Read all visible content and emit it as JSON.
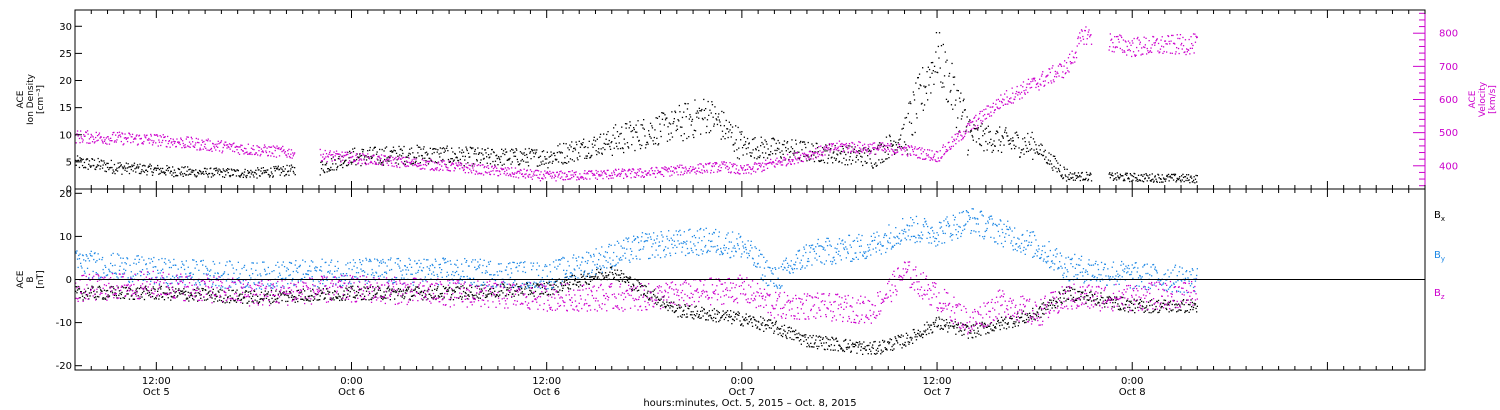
{
  "chart_data": [
    {
      "type": "scatter",
      "panel": "top",
      "time_range": [
        "2015-10-05T07:00",
        "2015-10-08T18:00"
      ],
      "left_axis": {
        "label_lines": [
          "ACE",
          "Ion Density",
          "[cm⁻³]"
        ],
        "ylim": [
          0,
          33
        ],
        "ticks": [
          0,
          5,
          10,
          15,
          20,
          25,
          30
        ]
      },
      "right_axis": {
        "label_lines": [
          "ACE",
          "Velocity",
          "[km/s]"
        ],
        "ylim": [
          330,
          870
        ],
        "ticks": [
          400,
          500,
          600,
          700,
          800
        ],
        "color": "#cc00cc"
      },
      "series": [
        {
          "key": "density",
          "color": "#000000",
          "axis": "left",
          "points": [
            [
              "2015-10-05T07:00",
              5
            ],
            [
              "2015-10-05T10:00",
              4
            ],
            [
              "2015-10-05T14:00",
              3.2
            ],
            [
              "2015-10-05T18:00",
              3
            ],
            [
              "2015-10-05T22:00",
              4
            ],
            [
              "2015-10-06T00:00",
              6
            ],
            [
              "2015-10-06T04:00",
              6.5
            ],
            [
              "2015-10-06T08:00",
              6
            ],
            [
              "2015-10-06T12:00",
              6
            ],
            [
              "2015-10-06T16:00",
              9
            ],
            [
              "2015-10-06T20:00",
              12
            ],
            [
              "2015-10-06T22:00",
              14
            ],
            [
              "2015-10-07T00:00",
              8
            ],
            [
              "2015-10-07T04:00",
              7
            ],
            [
              "2015-10-07T08:00",
              6
            ],
            [
              "2015-10-07T10:00",
              10
            ],
            [
              "2015-10-07T12:00",
              25
            ],
            [
              "2015-10-07T14:00",
              10
            ],
            [
              "2015-10-07T18:00",
              8
            ],
            [
              "2015-10-07T20:00",
              2.5
            ],
            [
              "2015-10-08T04:00",
              2
            ]
          ]
        },
        {
          "key": "velocity",
          "color": "#cc00cc",
          "axis": "right",
          "points": [
            [
              "2015-10-05T07:00",
              490
            ],
            [
              "2015-10-05T12:00",
              480
            ],
            [
              "2015-10-05T18:00",
              450
            ],
            [
              "2015-10-05T23:00",
              430
            ],
            [
              "2015-10-06T06:00",
              400
            ],
            [
              "2015-10-06T12:00",
              370
            ],
            [
              "2015-10-06T18:00",
              380
            ],
            [
              "2015-10-06T23:00",
              400
            ],
            [
              "2015-10-07T00:00",
              385
            ],
            [
              "2015-10-07T06:00",
              460
            ],
            [
              "2015-10-07T10:00",
              450
            ],
            [
              "2015-10-07T12:00",
              430
            ],
            [
              "2015-10-07T14:00",
              520
            ],
            [
              "2015-10-07T16:00",
              600
            ],
            [
              "2015-10-07T18:00",
              650
            ],
            [
              "2015-10-07T20:00",
              700
            ],
            [
              "2015-10-07T21:00",
              800
            ],
            [
              "2015-10-07T22:00",
              780
            ],
            [
              "2015-10-08T00:00",
              760
            ],
            [
              "2015-10-08T04:00",
              770
            ]
          ]
        }
      ]
    },
    {
      "type": "scatter",
      "panel": "bottom",
      "time_range": [
        "2015-10-05T07:00",
        "2015-10-08T18:00"
      ],
      "left_axis": {
        "label_lines": [
          "ACE",
          "B",
          "[nT]"
        ],
        "ylim": [
          -21,
          21
        ],
        "ticks": [
          -20,
          -10,
          0,
          10,
          20
        ],
        "zero_line": true
      },
      "series": [
        {
          "key": "bx",
          "name_base": "B",
          "name_sub": "x",
          "color": "#000000",
          "points": [
            [
              "2015-10-05T07:00",
              -3
            ],
            [
              "2015-10-05T12:00",
              -3
            ],
            [
              "2015-10-05T18:00",
              -4
            ],
            [
              "2015-10-06T00:00",
              -3
            ],
            [
              "2015-10-06T06:00",
              -3
            ],
            [
              "2015-10-06T12:00",
              -2
            ],
            [
              "2015-10-06T16:00",
              2
            ],
            [
              "2015-10-06T20:00",
              -7
            ],
            [
              "2015-10-07T00:00",
              -9
            ],
            [
              "2015-10-07T02:00",
              -11
            ],
            [
              "2015-10-07T04:00",
              -14
            ],
            [
              "2015-10-07T08:00",
              -16
            ],
            [
              "2015-10-07T10:00",
              -14
            ],
            [
              "2015-10-07T12:00",
              -10
            ],
            [
              "2015-10-07T14:00",
              -12
            ],
            [
              "2015-10-07T18:00",
              -8
            ],
            [
              "2015-10-07T20:00",
              -3
            ],
            [
              "2015-10-08T00:00",
              -6
            ],
            [
              "2015-10-08T04:00",
              -6
            ]
          ]
        },
        {
          "key": "by",
          "name_base": "B",
          "name_sub": "y",
          "color": "#1e88e5",
          "points": [
            [
              "2015-10-05T07:00",
              4
            ],
            [
              "2015-10-05T12:00",
              2
            ],
            [
              "2015-10-05T18:00",
              1
            ],
            [
              "2015-10-06T00:00",
              2
            ],
            [
              "2015-10-06T06:00",
              2
            ],
            [
              "2015-10-06T12:00",
              1
            ],
            [
              "2015-10-06T18:00",
              8
            ],
            [
              "2015-10-06T22:00",
              9
            ],
            [
              "2015-10-07T00:00",
              8
            ],
            [
              "2015-10-07T02:00",
              0
            ],
            [
              "2015-10-07T04:00",
              6
            ],
            [
              "2015-10-07T08:00",
              8
            ],
            [
              "2015-10-07T10:00",
              12
            ],
            [
              "2015-10-07T12:00",
              11
            ],
            [
              "2015-10-07T14:00",
              14
            ],
            [
              "2015-10-07T18:00",
              8
            ],
            [
              "2015-10-07T20:00",
              3
            ],
            [
              "2015-10-08T00:00",
              1
            ],
            [
              "2015-10-08T04:00",
              0
            ]
          ]
        },
        {
          "key": "bz",
          "name_base": "B",
          "name_sub": "z",
          "color": "#cc00cc",
          "points": [
            [
              "2015-10-05T07:00",
              -2
            ],
            [
              "2015-10-05T12:00",
              -1
            ],
            [
              "2015-10-05T18:00",
              -3
            ],
            [
              "2015-10-06T00:00",
              -2
            ],
            [
              "2015-10-06T06:00",
              -3
            ],
            [
              "2015-10-06T12:00",
              -4
            ],
            [
              "2015-10-06T18:00",
              -4
            ],
            [
              "2015-10-07T00:00",
              -2
            ],
            [
              "2015-10-07T02:00",
              -6
            ],
            [
              "2015-10-07T04:00",
              -6
            ],
            [
              "2015-10-07T08:00",
              -7
            ],
            [
              "2015-10-07T10:00",
              2
            ],
            [
              "2015-10-07T12:00",
              -4
            ],
            [
              "2015-10-07T14:00",
              -10
            ],
            [
              "2015-10-07T16:00",
              -5
            ],
            [
              "2015-10-07T18:00",
              -8
            ],
            [
              "2015-10-07T20:00",
              -4
            ],
            [
              "2015-10-08T00:00",
              -4
            ],
            [
              "2015-10-08T04:00",
              -3
            ]
          ]
        }
      ]
    }
  ],
  "x_axis": {
    "tick_labels": [
      {
        "time": "2015-10-05T12:00",
        "top": "12:00",
        "bottom": "Oct 5"
      },
      {
        "time": "2015-10-06T00:00",
        "top": "0:00",
        "bottom": "Oct 6"
      },
      {
        "time": "2015-10-06T12:00",
        "top": "12:00",
        "bottom": "Oct 6"
      },
      {
        "time": "2015-10-07T00:00",
        "top": "0:00",
        "bottom": "Oct 7"
      },
      {
        "time": "2015-10-07T12:00",
        "top": "12:00",
        "bottom": "Oct 7"
      },
      {
        "time": "2015-10-08T00:00",
        "top": "0:00",
        "bottom": "Oct 8"
      }
    ],
    "minor_tick_hours": 1,
    "title": "hours:minutes, Oct.  5, 2015 – Oct.  8, 2015"
  },
  "legend": {
    "placement": "right"
  }
}
